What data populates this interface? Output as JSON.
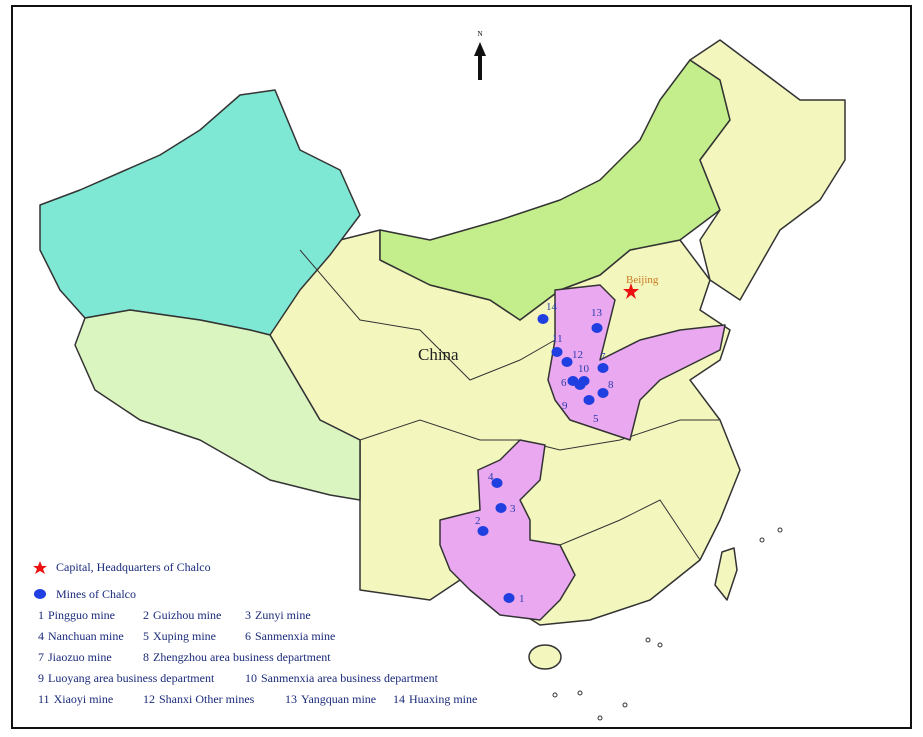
{
  "map": {
    "north_label": "N",
    "country_label": "China",
    "capital_label": "Beijing",
    "legend": {
      "capital": "Capital, Headquarters of Chalco",
      "mines": "Mines of Chalco"
    },
    "mines": [
      {
        "id": "1",
        "name": "Pingguo mine"
      },
      {
        "id": "2",
        "name": "Guizhou mine"
      },
      {
        "id": "3",
        "name": "Zunyi mine"
      },
      {
        "id": "4",
        "name": "Nanchuan mine"
      },
      {
        "id": "5",
        "name": "Xuping mine"
      },
      {
        "id": "6",
        "name": "Sanmenxia mine"
      },
      {
        "id": "7",
        "name": "Jiaozuo mine"
      },
      {
        "id": "8",
        "name": "Zhengzhou area business department"
      },
      {
        "id": "9",
        "name": "Luoyang area business department"
      },
      {
        "id": "10",
        "name": "Sanmenxia area business department"
      },
      {
        "id": "11",
        "name": "Xiaoyi mine"
      },
      {
        "id": "12",
        "name": "Shanxi Other mines"
      },
      {
        "id": "13",
        "name": "Yangquan mine"
      },
      {
        "id": "14",
        "name": "Huaxing mine"
      }
    ]
  }
}
